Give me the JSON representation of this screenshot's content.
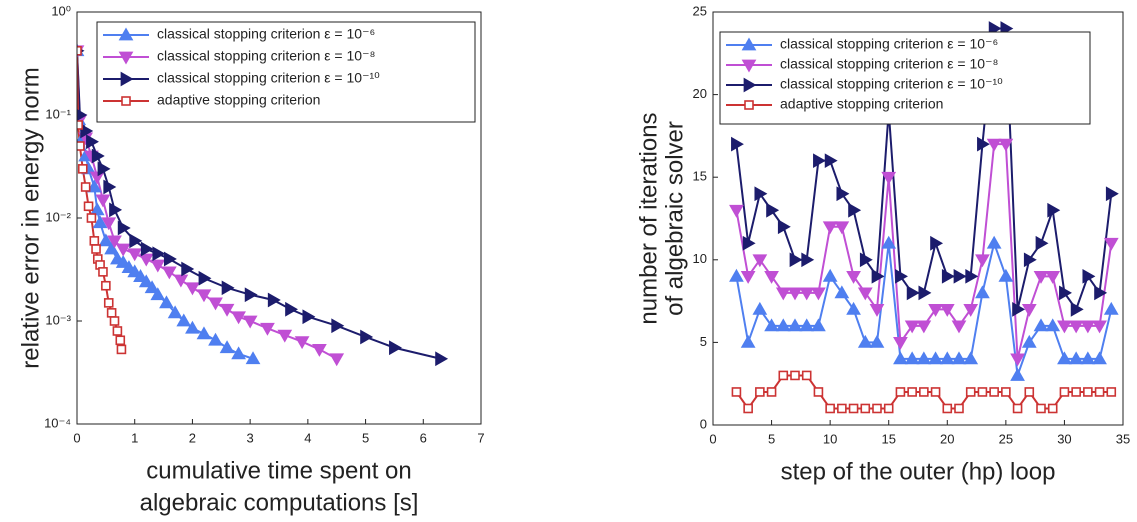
{
  "chart_data": [
    {
      "type": "line",
      "xlabel": [
        "cumulative time spent on",
        "algebraic computations [s]"
      ],
      "ylabel": [
        "relative error in energy norm"
      ],
      "log_y": true,
      "xlim": [
        0,
        7
      ],
      "xticks": [
        0,
        1,
        2,
        3,
        4,
        5,
        6,
        7
      ],
      "ylim": [
        0.0001,
        1
      ],
      "yticks": [
        {
          "value": 0.0001,
          "label": "10⁻⁴"
        },
        {
          "value": 0.001,
          "label": "10⁻³"
        },
        {
          "value": 0.01,
          "label": "10⁻²"
        },
        {
          "value": 0.1,
          "label": "10⁻¹"
        },
        {
          "value": 1,
          "label": "10⁰"
        }
      ],
      "legend": "upper right",
      "series": [
        {
          "name": "classical stopping criterion ε = 10⁻⁶",
          "color": "#4f7ff0",
          "marker": "triangle-up",
          "x": [
            0,
            0.03,
            0.1,
            0.15,
            0.2,
            0.3,
            0.35,
            0.4,
            0.5,
            0.6,
            0.7,
            0.8,
            0.9,
            1.0,
            1.1,
            1.2,
            1.3,
            1.4,
            1.55,
            1.7,
            1.85,
            2.0,
            2.2,
            2.4,
            2.6,
            2.8,
            3.05
          ],
          "values": [
            0.42,
            0.09,
            0.06,
            0.04,
            0.03,
            0.02,
            0.012,
            0.009,
            0.006,
            0.005,
            0.004,
            0.0037,
            0.0033,
            0.003,
            0.0027,
            0.0024,
            0.0021,
            0.0018,
            0.0015,
            0.0012,
            0.001,
            0.00085,
            0.00075,
            0.00065,
            0.00055,
            0.00048,
            0.00043
          ]
        },
        {
          "name": "classical stopping criterion ε = 10⁻⁸",
          "color": "#c04fd4",
          "marker": "triangle-down",
          "x": [
            0,
            0.05,
            0.15,
            0.25,
            0.35,
            0.45,
            0.55,
            0.65,
            0.8,
            1.0,
            1.2,
            1.4,
            1.6,
            1.8,
            2.0,
            2.2,
            2.4,
            2.6,
            2.8,
            3.0,
            3.3,
            3.6,
            3.9,
            4.2,
            4.5
          ],
          "values": [
            0.42,
            0.09,
            0.06,
            0.04,
            0.025,
            0.015,
            0.009,
            0.006,
            0.005,
            0.0045,
            0.004,
            0.0035,
            0.003,
            0.0025,
            0.0021,
            0.0018,
            0.0015,
            0.0013,
            0.0011,
            0.001,
            0.00085,
            0.00073,
            0.00063,
            0.00053,
            0.00043
          ]
        },
        {
          "name": "classical stopping criterion ε = 10⁻¹⁰",
          "color": "#1c1c6c",
          "marker": "triangle-right",
          "x": [
            0,
            0.05,
            0.15,
            0.25,
            0.35,
            0.45,
            0.55,
            0.65,
            0.8,
            1.0,
            1.2,
            1.4,
            1.6,
            1.9,
            2.2,
            2.6,
            3.0,
            3.4,
            3.7,
            4.0,
            4.5,
            5.0,
            5.5,
            6.3
          ],
          "values": [
            0.42,
            0.1,
            0.07,
            0.055,
            0.04,
            0.03,
            0.02,
            0.012,
            0.008,
            0.006,
            0.005,
            0.0045,
            0.004,
            0.0032,
            0.0026,
            0.0021,
            0.0018,
            0.0016,
            0.0013,
            0.0011,
            0.0009,
            0.0007,
            0.00055,
            0.00043
          ]
        },
        {
          "name": "adaptive stopping criterion",
          "color": "#cc3333",
          "marker": "square-open",
          "x": [
            0,
            0.02,
            0.05,
            0.1,
            0.15,
            0.2,
            0.25,
            0.3,
            0.33,
            0.36,
            0.4,
            0.45,
            0.5,
            0.55,
            0.6,
            0.65,
            0.7,
            0.75,
            0.77
          ],
          "values": [
            0.42,
            0.08,
            0.05,
            0.03,
            0.02,
            0.013,
            0.01,
            0.006,
            0.005,
            0.004,
            0.0035,
            0.003,
            0.0022,
            0.0015,
            0.0012,
            0.001,
            0.0008,
            0.00065,
            0.00053
          ]
        }
      ]
    },
    {
      "type": "line",
      "xlabel": [
        "step of the outer (hp) loop"
      ],
      "ylabel": [
        "number of iterations",
        "of algebraic solver"
      ],
      "log_y": false,
      "xlim": [
        0,
        35
      ],
      "xticks": [
        0,
        5,
        10,
        15,
        20,
        25,
        30,
        35
      ],
      "ylim": [
        0,
        25
      ],
      "yticks": [
        0,
        5,
        10,
        15,
        20,
        25
      ],
      "legend": "upper right",
      "x": [
        2,
        3,
        4,
        5,
        6,
        7,
        8,
        9,
        10,
        11,
        12,
        13,
        14,
        15,
        16,
        17,
        18,
        19,
        20,
        21,
        22,
        23,
        24,
        25,
        26,
        27,
        28,
        29,
        30,
        31,
        32,
        33,
        34
      ],
      "series": [
        {
          "name": "classical stopping criterion ε = 10⁻⁶",
          "color": "#4f7ff0",
          "marker": "triangle-up",
          "values": [
            9,
            5,
            7,
            6,
            6,
            6,
            6,
            6,
            9,
            8,
            7,
            5,
            5,
            11,
            4,
            4,
            4,
            4,
            4,
            4,
            4,
            8,
            11,
            9,
            3,
            5,
            6,
            6,
            4,
            4,
            4,
            4,
            7
          ]
        },
        {
          "name": "classical stopping criterion ε = 10⁻⁸",
          "color": "#c04fd4",
          "marker": "triangle-down",
          "values": [
            13,
            9,
            10,
            9,
            8,
            8,
            8,
            8,
            12,
            12,
            9,
            8,
            7,
            15,
            5,
            6,
            6,
            7,
            7,
            6,
            7,
            10,
            17,
            17,
            4,
            7,
            9,
            9,
            6,
            6,
            6,
            6,
            11
          ]
        },
        {
          "name": "classical stopping criterion ε = 10⁻¹⁰",
          "color": "#1c1c6c",
          "marker": "triangle-right",
          "values": [
            17,
            11,
            14,
            13,
            12,
            10,
            10,
            16,
            16,
            14,
            13,
            10,
            9,
            19,
            9,
            8,
            8,
            11,
            9,
            9,
            9,
            17,
            24,
            24,
            7,
            10,
            11,
            13,
            8,
            7,
            9,
            8,
            14
          ]
        },
        {
          "name": "adaptive stopping criterion",
          "color": "#cc3333",
          "marker": "square-open",
          "values": [
            2,
            1,
            2,
            2,
            3,
            3,
            3,
            2,
            1,
            1,
            1,
            1,
            1,
            1,
            2,
            2,
            2,
            2,
            1,
            1,
            2,
            2,
            2,
            2,
            1,
            2,
            1,
            1,
            2,
            2,
            2,
            2,
            2
          ]
        }
      ]
    }
  ]
}
